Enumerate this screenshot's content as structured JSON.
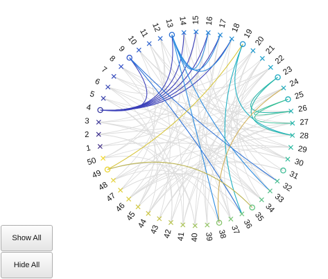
{
  "buttons": {
    "show_all": "Show All",
    "hide_all": "Hide All"
  },
  "diagram": {
    "node_count": 50,
    "start_label": 1,
    "start_angle_deg": 190.5,
    "colormap": [
      "#3e2b84",
      "#3350c8",
      "#2279d8",
      "#1aa5c9",
      "#2db9a1",
      "#6cc479",
      "#c4c247",
      "#f2d82f"
    ],
    "highlight_edge_colors": {
      "4": "#3a3fb9",
      "9": "#2d72d8",
      "13": "#2b8be0",
      "19": "#1fb0c2",
      "23": "#25b7aa",
      "25": "#31bd94",
      "31": "#7cc46f",
      "35": "#bab24e",
      "38": "#d0b05a",
      "49": "#d8c63f"
    },
    "background_edge_color": "#dcdcdc",
    "open_circle_nodes": [
      4,
      9,
      13,
      19,
      23,
      25,
      31,
      35,
      38,
      49
    ],
    "highlighted_edges": [
      [
        4,
        9
      ],
      [
        4,
        13
      ],
      [
        4,
        14
      ],
      [
        4,
        15
      ],
      [
        4,
        16
      ],
      [
        4,
        17
      ],
      [
        4,
        18
      ],
      [
        9,
        32
      ],
      [
        9,
        36
      ],
      [
        13,
        16
      ],
      [
        13,
        17
      ],
      [
        13,
        18
      ],
      [
        13,
        33
      ],
      [
        13,
        38
      ],
      [
        19,
        28
      ],
      [
        19,
        36
      ],
      [
        23,
        26
      ],
      [
        23,
        28
      ],
      [
        25,
        26
      ],
      [
        25,
        27
      ],
      [
        35,
        49
      ],
      [
        38,
        24
      ],
      [
        49,
        19
      ]
    ],
    "background_edges": [
      [
        1,
        24
      ],
      [
        1,
        30
      ],
      [
        2,
        26
      ],
      [
        2,
        40
      ],
      [
        3,
        22
      ],
      [
        3,
        34
      ],
      [
        5,
        28
      ],
      [
        5,
        41
      ],
      [
        6,
        29
      ],
      [
        6,
        44
      ],
      [
        7,
        20
      ],
      [
        7,
        32
      ],
      [
        8,
        22
      ],
      [
        8,
        45
      ],
      [
        10,
        27
      ],
      [
        10,
        47
      ],
      [
        11,
        30
      ],
      [
        11,
        43
      ],
      [
        12,
        37
      ],
      [
        12,
        48
      ],
      [
        14,
        31
      ],
      [
        14,
        45
      ],
      [
        15,
        39
      ],
      [
        15,
        50
      ],
      [
        16,
        33
      ],
      [
        16,
        46
      ],
      [
        17,
        40
      ],
      [
        17,
        3
      ],
      [
        18,
        42
      ],
      [
        18,
        6
      ],
      [
        20,
        35
      ],
      [
        20,
        47
      ],
      [
        21,
        37
      ],
      [
        21,
        2
      ],
      [
        22,
        39
      ],
      [
        22,
        44
      ],
      [
        24,
        41
      ],
      [
        24,
        48
      ],
      [
        26,
        43
      ],
      [
        26,
        7
      ],
      [
        27,
        44
      ],
      [
        27,
        50
      ],
      [
        28,
        46
      ],
      [
        28,
        10
      ],
      [
        29,
        48
      ],
      [
        29,
        12
      ],
      [
        30,
        1
      ],
      [
        30,
        15
      ],
      [
        32,
        3
      ],
      [
        32,
        18
      ],
      [
        33,
        5
      ],
      [
        33,
        20
      ],
      [
        34,
        8
      ],
      [
        34,
        21
      ],
      [
        36,
        10
      ],
      [
        36,
        47
      ],
      [
        37,
        14
      ],
      [
        37,
        49
      ],
      [
        39,
        17
      ],
      [
        40,
        21
      ],
      [
        41,
        22
      ],
      [
        41,
        11
      ],
      [
        42,
        23
      ],
      [
        42,
        5
      ],
      [
        43,
        27
      ],
      [
        44,
        29
      ],
      [
        45,
        31
      ],
      [
        46,
        34
      ],
      [
        47,
        36
      ],
      [
        48,
        38
      ],
      [
        50,
        40
      ],
      [
        50,
        12
      ],
      [
        2,
        42
      ],
      [
        6,
        34
      ],
      [
        8,
        30
      ],
      [
        11,
        26
      ],
      [
        16,
        45
      ],
      [
        20,
        44
      ],
      [
        24,
        46
      ],
      [
        31,
        46
      ]
    ]
  }
}
